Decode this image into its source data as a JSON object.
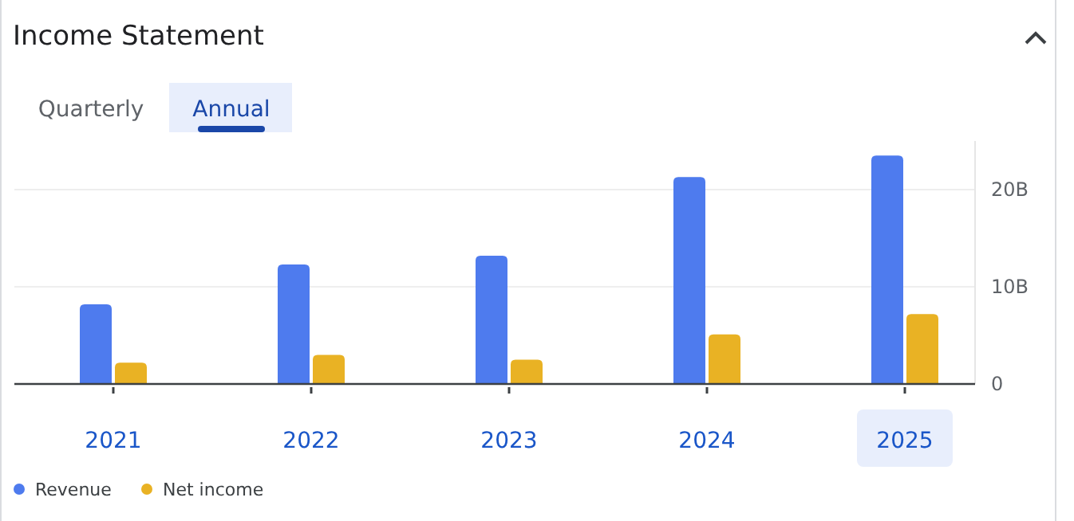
{
  "chart_data": {
    "type": "bar",
    "title": "Income Statement",
    "annotations": [
      "Quarterly",
      "Annual"
    ],
    "categories": [
      "2021",
      "2022",
      "2023",
      "2024",
      "2025"
    ],
    "series": [
      {
        "name": "Revenue",
        "color": "#4e7bee",
        "values": [
          8.2,
          12.3,
          13.2,
          21.3,
          23.5
        ]
      },
      {
        "name": "Net income",
        "color": "#e9b224",
        "values": [
          2.2,
          3.0,
          2.5,
          5.1,
          7.2
        ]
      }
    ],
    "ylim": [
      0,
      25
    ],
    "yticks": [
      0,
      {
        "value": 10,
        "label": "10B"
      },
      {
        "value": 20,
        "label": "20B"
      }
    ],
    "grid": "y",
    "legend": "bottom left"
  }
}
